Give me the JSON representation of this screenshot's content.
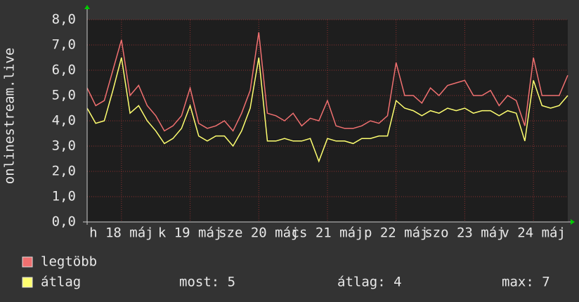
{
  "chart_data": {
    "type": "line",
    "ylabel": "onlinestream.live",
    "x": [
      0,
      3,
      6,
      9,
      12,
      15,
      18,
      21,
      24,
      27,
      30,
      33,
      36,
      39,
      42,
      45,
      48,
      51,
      54,
      57,
      60,
      63,
      66,
      69,
      72,
      75,
      78,
      81,
      84,
      87,
      90,
      93,
      96,
      99,
      102,
      105,
      108,
      111,
      114,
      117,
      120,
      123,
      126,
      129,
      132,
      135,
      138,
      141,
      144,
      147,
      150,
      153,
      156,
      159,
      162,
      165,
      168
    ],
    "xlim": [
      0,
      168
    ],
    "xticks": [
      {
        "value": 12,
        "label": "h 18 máj"
      },
      {
        "value": 36,
        "label": "k 19 máj"
      },
      {
        "value": 60,
        "label": "sze 20 máj"
      },
      {
        "value": 84,
        "label": "cs 21 máj"
      },
      {
        "value": 108,
        "label": "p 22 máj"
      },
      {
        "value": 132,
        "label": "szo 23 máj"
      },
      {
        "value": 156,
        "label": "v 24 máj"
      }
    ],
    "ylim": [
      0,
      8
    ],
    "yticks": [
      {
        "value": 0,
        "label": "0,0"
      },
      {
        "value": 1,
        "label": "1,0"
      },
      {
        "value": 2,
        "label": "2,0"
      },
      {
        "value": 3,
        "label": "3,0"
      },
      {
        "value": 4,
        "label": "4,0"
      },
      {
        "value": 5,
        "label": "5,0"
      },
      {
        "value": 6,
        "label": "6,0"
      },
      {
        "value": 7,
        "label": "7,0"
      },
      {
        "value": 8,
        "label": "8,0"
      }
    ],
    "grid": true,
    "series": [
      {
        "name": "legtöbb",
        "color": "#f07070",
        "values": [
          5.3,
          4.6,
          4.8,
          6.0,
          7.2,
          5.0,
          5.4,
          4.6,
          4.2,
          3.6,
          3.8,
          4.2,
          5.3,
          3.9,
          3.7,
          3.8,
          4.0,
          3.6,
          4.3,
          5.2,
          7.5,
          4.3,
          4.2,
          4.0,
          4.3,
          3.8,
          4.1,
          4.0,
          4.8,
          3.8,
          3.7,
          3.7,
          3.8,
          4.0,
          3.9,
          4.2,
          6.3,
          5.0,
          5.0,
          4.7,
          5.3,
          5.0,
          5.4,
          5.5,
          5.6,
          5.0,
          5.0,
          5.2,
          4.6,
          5.0,
          4.8,
          3.8,
          6.5,
          5.0,
          5.0,
          5.0,
          5.8
        ]
      },
      {
        "name": "átlag",
        "color": "#ffff70",
        "values": [
          4.5,
          3.9,
          4.0,
          5.2,
          6.5,
          4.3,
          4.6,
          4.0,
          3.6,
          3.1,
          3.3,
          3.7,
          4.6,
          3.4,
          3.2,
          3.4,
          3.4,
          3.0,
          3.6,
          4.5,
          6.5,
          3.2,
          3.2,
          3.3,
          3.2,
          3.2,
          3.3,
          2.4,
          3.3,
          3.2,
          3.2,
          3.1,
          3.3,
          3.3,
          3.4,
          3.4,
          4.8,
          4.5,
          4.4,
          4.2,
          4.4,
          4.3,
          4.5,
          4.4,
          4.5,
          4.3,
          4.4,
          4.4,
          4.2,
          4.4,
          4.3,
          3.2,
          5.6,
          4.6,
          4.5,
          4.6,
          5.0
        ]
      }
    ],
    "stats": [
      "most: 5",
      "átlag: 4",
      "max: 7"
    ]
  }
}
